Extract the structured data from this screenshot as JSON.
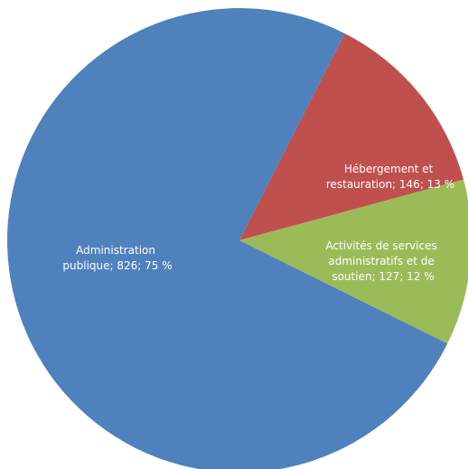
{
  "chart_data": {
    "type": "pie",
    "categories": [
      "Administration publique",
      "Hébergement et restauration",
      "Activités de services administratifs et de soutien"
    ],
    "values": [
      826,
      146,
      127
    ],
    "percentages": [
      75,
      13,
      12
    ],
    "colors": [
      "#4f81bd",
      "#c0504d",
      "#9bbb59"
    ],
    "labels": [
      [
        "Administration",
        "publique; 826; 75 %"
      ],
      [
        "Hébergement et",
        "restauration; 146; 13 %"
      ],
      [
        "Activités de services",
        "administratifs et de",
        "soutien; 127; 12 %"
      ]
    ],
    "title": "",
    "legend": "none"
  }
}
